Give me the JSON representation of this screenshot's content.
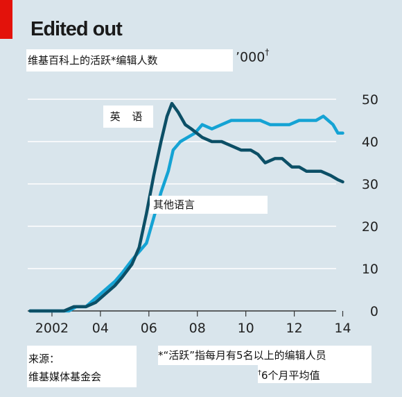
{
  "header": {
    "title": "Edited out",
    "subtitle": "维基百科上的活跃*编辑人数",
    "unit": "’000",
    "unit_mark": "†"
  },
  "labels": {
    "english": "英 语",
    "other": "其他语言"
  },
  "footer": {
    "source_label": "来源：",
    "source_name": "维基媒体基金会",
    "note1": "*“活跃”指每月有5名以上的编辑人员",
    "note2_mark": "†",
    "note2": "6个月平均值"
  },
  "colors": {
    "background": "#d9e5ec",
    "english_series": "#0c4f66",
    "other_series": "#15a3d4",
    "gridline": "#ffffff",
    "baseline": "#333333",
    "brand_tab": "#e3120b"
  },
  "chart_data": {
    "type": "line",
    "title": "维基百科上的活跃*编辑人数",
    "ylabel": "’000†",
    "xlabel": "",
    "xlim": [
      2001.0,
      2014.1
    ],
    "ylim": [
      0,
      50
    ],
    "y_ticks": [
      0,
      10,
      20,
      30,
      40,
      50
    ],
    "x_ticks": [
      {
        "value": 2002,
        "label": "2002"
      },
      {
        "value": 2004,
        "label": "04"
      },
      {
        "value": 2006,
        "label": "06"
      },
      {
        "value": 2008,
        "label": "08"
      },
      {
        "value": 2010,
        "label": "10"
      },
      {
        "value": 2012,
        "label": "12"
      },
      {
        "value": 2014,
        "label": "14"
      }
    ],
    "grid": true,
    "y_axis_side": "right",
    "series": [
      {
        "name": "英 语",
        "x": [
          2001.1,
          2002.5,
          2002.9,
          2003.4,
          2003.8,
          2004.2,
          2004.6,
          2004.9,
          2005.3,
          2005.6,
          2005.9,
          2006.2,
          2006.5,
          2006.75,
          2006.95,
          2007.2,
          2007.5,
          2007.75,
          2008.2,
          2008.6,
          2009.0,
          2009.4,
          2009.8,
          2010.2,
          2010.5,
          2010.8,
          2011.2,
          2011.5,
          2011.9,
          2012.2,
          2012.5,
          2012.8,
          2013.1,
          2013.5,
          2013.8,
          2014.0
        ],
        "values": [
          0,
          0,
          1,
          1,
          2,
          4,
          6,
          8,
          11,
          15,
          23,
          32,
          40,
          46,
          49,
          47,
          44,
          43,
          41,
          40,
          40,
          39,
          38,
          38,
          37,
          35,
          36,
          36,
          34,
          34,
          33,
          33,
          33,
          32,
          31,
          30.5
        ]
      },
      {
        "name": "其他语言",
        "x": [
          2001.1,
          2002.7,
          2003.0,
          2003.4,
          2003.8,
          2004.2,
          2004.6,
          2004.9,
          2005.3,
          2005.6,
          2005.9,
          2006.2,
          2006.5,
          2006.8,
          2007.0,
          2007.3,
          2007.6,
          2007.9,
          2008.2,
          2008.6,
          2009.0,
          2009.4,
          2009.8,
          2010.2,
          2010.6,
          2011.0,
          2011.4,
          2011.8,
          2012.2,
          2012.6,
          2012.9,
          2013.2,
          2013.4,
          2013.6,
          2013.8,
          2014.0
        ],
        "values": [
          0,
          0,
          1,
          1,
          3,
          5,
          7,
          9,
          12,
          14,
          16,
          22,
          28,
          33,
          38,
          40,
          41,
          42,
          44,
          43,
          44,
          45,
          45,
          45,
          45,
          44,
          44,
          44,
          45,
          45,
          45,
          46,
          45,
          44,
          42,
          42
        ]
      }
    ]
  }
}
